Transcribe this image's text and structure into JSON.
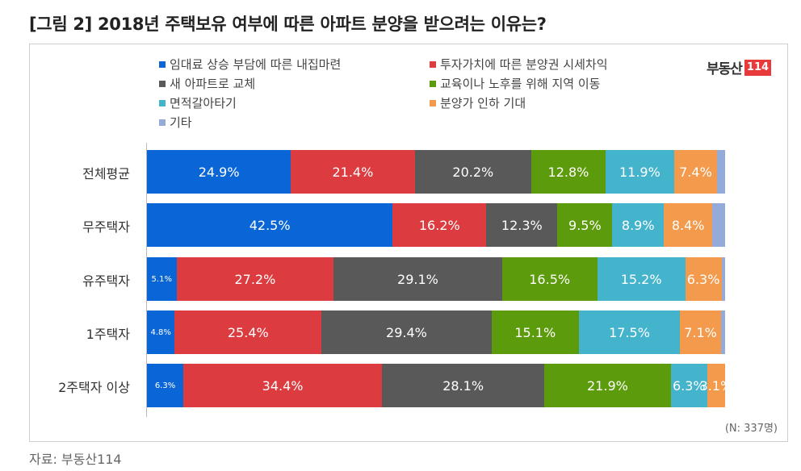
{
  "title": "[그림 2] 2018년 주택보유 여부에 따른 아파트 분양을 받으려는 이유는?",
  "logo": {
    "text": "부동산",
    "number": "114"
  },
  "note": "(N: 337명)",
  "source": "자료: 부동산114",
  "chart_data": {
    "type": "bar",
    "orientation": "horizontal-stacked-100",
    "categories": [
      "전체평균",
      "무주택자",
      "유주택자",
      "1주택자",
      "2주택자 이상"
    ],
    "series": [
      {
        "name": "임대료 상승 부담에 따른 내집마련",
        "color": "#0a66d6",
        "values": [
          24.9,
          42.5,
          5.1,
          4.8,
          6.3
        ]
      },
      {
        "name": "투자가치에 따른 분양권 시세차익",
        "color": "#dc3c3f",
        "values": [
          21.4,
          16.2,
          27.2,
          25.4,
          34.4
        ]
      },
      {
        "name": "새 아파트로 교체",
        "color": "#595959",
        "values": [
          20.2,
          12.3,
          29.1,
          29.4,
          28.1
        ]
      },
      {
        "name": "교육이나 노후를 위해 지역 이동",
        "color": "#5c9b0b",
        "values": [
          12.8,
          9.5,
          16.5,
          15.1,
          21.9
        ]
      },
      {
        "name": "면적갈아타기",
        "color": "#44b3cc",
        "values": [
          11.9,
          8.9,
          15.2,
          17.5,
          6.3
        ]
      },
      {
        "name": "분양가 인하 기대",
        "color": "#f39a4c",
        "values": [
          7.4,
          8.4,
          6.3,
          7.1,
          3.1
        ]
      },
      {
        "name": "기타",
        "color": "#94aad8",
        "values": [
          1.4,
          2.2,
          0.6,
          0.7,
          0.0
        ]
      }
    ],
    "labels": [
      [
        "24.9%",
        "21.4%",
        "20.2%",
        "12.8%",
        "11.9%",
        "7.4%",
        ""
      ],
      [
        "42.5%",
        "16.2%",
        "12.3%",
        "9.5%",
        "8.9%",
        "8.4%",
        ""
      ],
      [
        "5.1%",
        "27.2%",
        "29.1%",
        "16.5%",
        "15.2%",
        "6.3%",
        ""
      ],
      [
        "4.8%",
        "25.4%",
        "29.4%",
        "15.1%",
        "17.5%",
        "7.1%",
        ""
      ],
      [
        "6.3%",
        "34.4%",
        "28.1%",
        "21.9%",
        "6.3%",
        "3.1%",
        ""
      ]
    ],
    "legend_position": "top"
  }
}
